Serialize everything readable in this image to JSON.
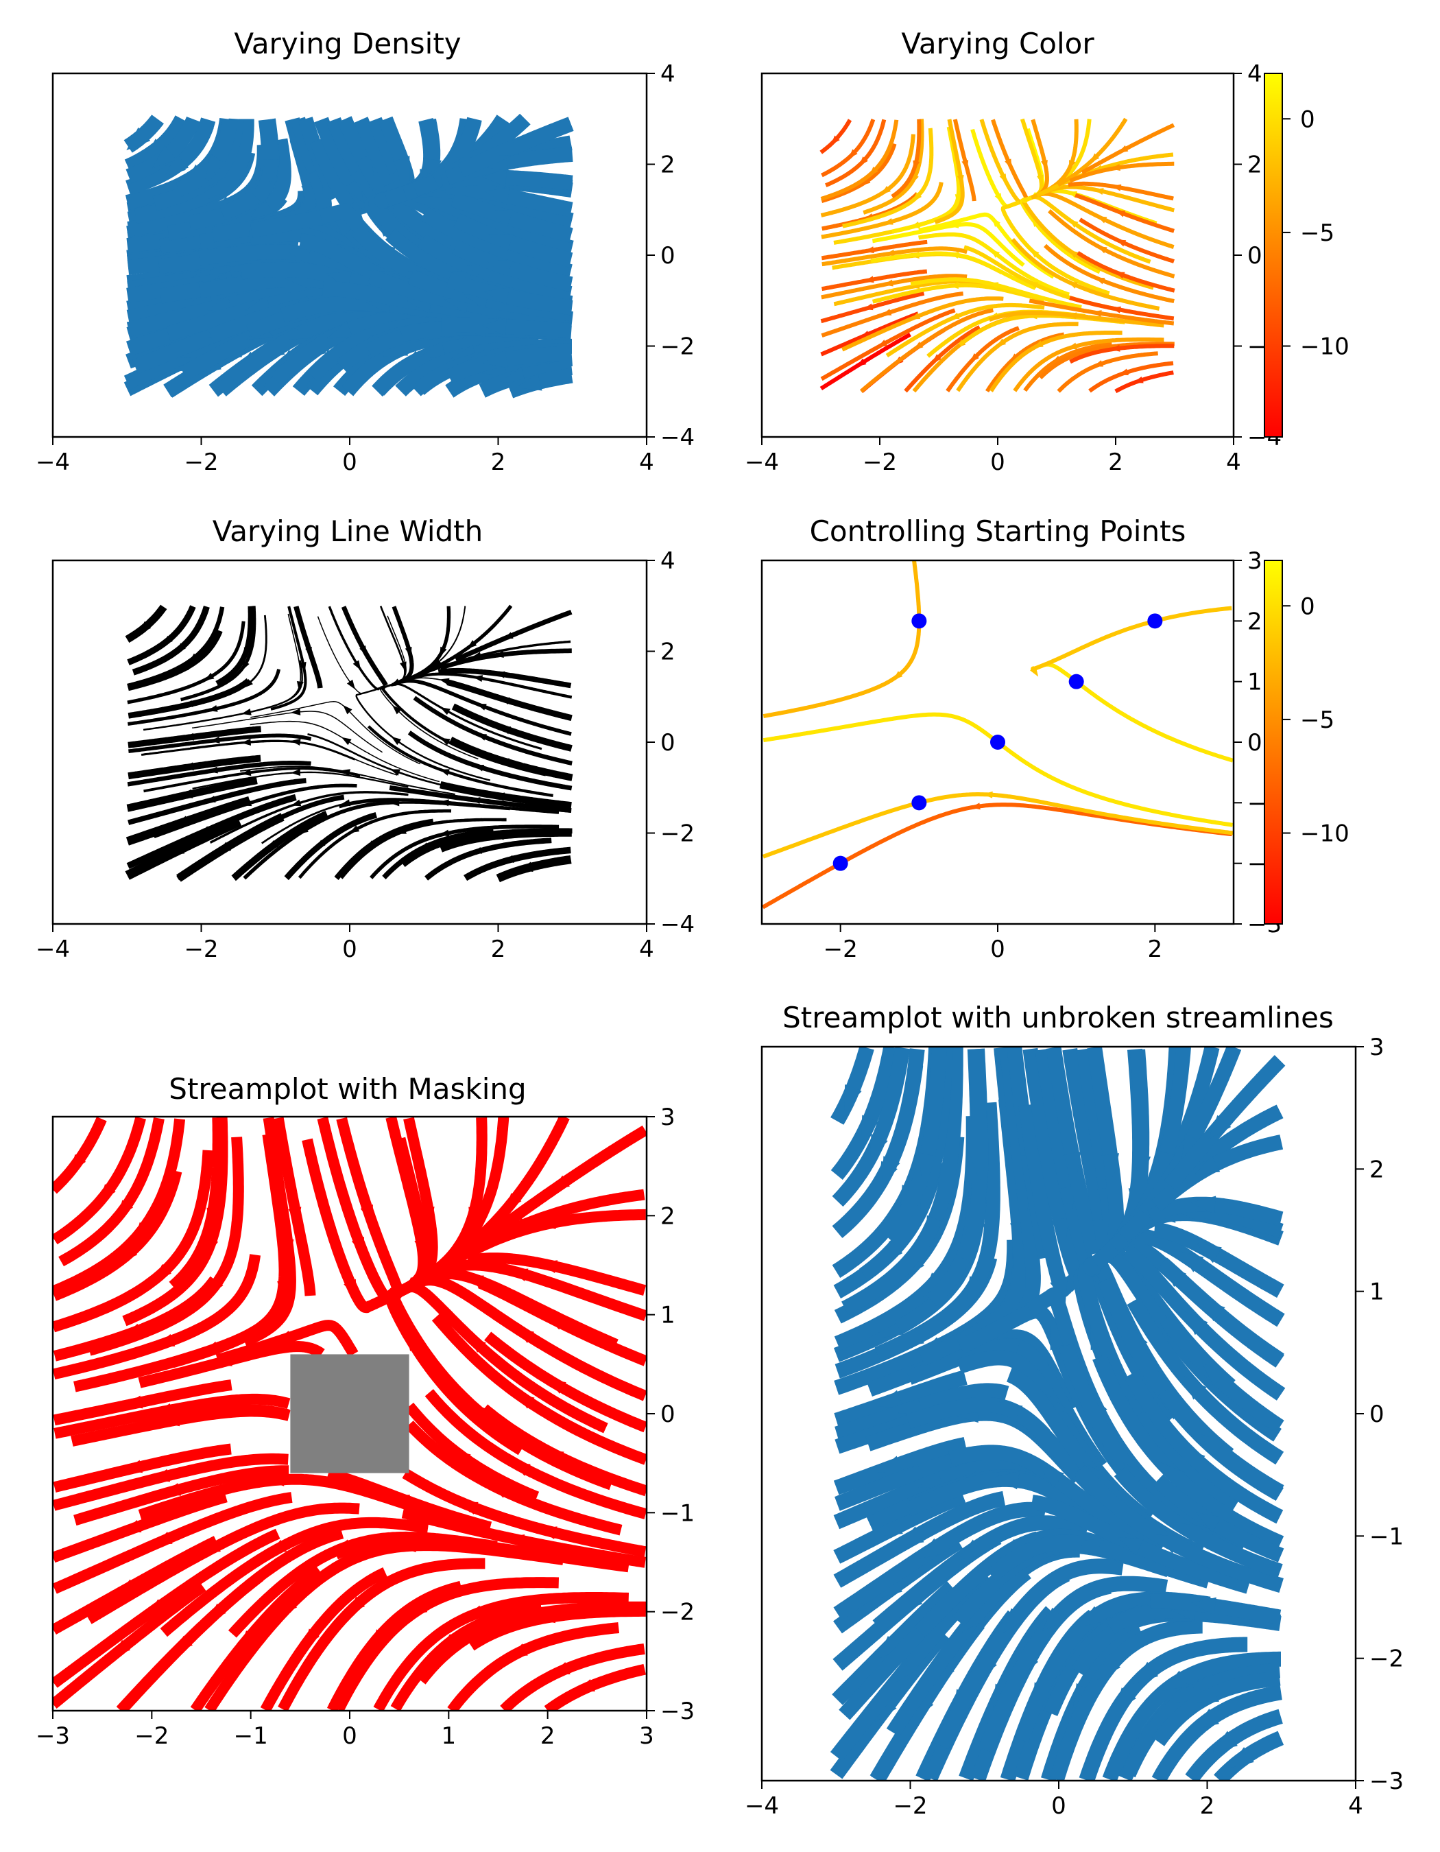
{
  "chart_data": [
    {
      "type": "streamplot",
      "title": "Varying Density",
      "xlim": [
        -4,
        4
      ],
      "ylim": [
        -4,
        4
      ],
      "xticks": [
        -4,
        -2,
        0,
        2,
        4
      ],
      "yticks": [
        -4,
        -2,
        0,
        2,
        4
      ],
      "x_tick_labels": [
        "−4",
        "−2",
        "0",
        "2",
        "4"
      ],
      "y_tick_labels": [
        "−4",
        "−2",
        "0",
        "2",
        "4"
      ],
      "y_axis_side": "right",
      "color": "#1f77b4",
      "field_domain": {
        "x": [
          -3,
          3
        ],
        "y": [
          -3,
          3
        ]
      }
    },
    {
      "type": "streamplot",
      "title": "Varying Color",
      "xlim": [
        -4,
        4
      ],
      "ylim": [
        -4,
        4
      ],
      "xticks": [
        -4,
        -2,
        0,
        2,
        4
      ],
      "yticks": [
        -4,
        -2,
        0,
        2,
        4
      ],
      "x_tick_labels": [
        "−4",
        "−2",
        "0",
        "2",
        "4"
      ],
      "y_tick_labels": [
        "−4",
        "−2",
        "0",
        "2",
        "4"
      ],
      "y_axis_side": "right",
      "colormap": "autumn",
      "colorbar": {
        "range": [
          -14,
          2
        ],
        "ticks": [
          0,
          -5,
          -10
        ],
        "tick_labels": [
          "0",
          "−5",
          "−10"
        ]
      },
      "field_domain": {
        "x": [
          -3,
          3
        ],
        "y": [
          -3,
          3
        ]
      }
    },
    {
      "type": "streamplot",
      "title": "Varying Line Width",
      "xlim": [
        -4,
        4
      ],
      "ylim": [
        -4,
        4
      ],
      "xticks": [
        -4,
        -2,
        0,
        2,
        4
      ],
      "yticks": [
        -4,
        -2,
        0,
        2,
        4
      ],
      "x_tick_labels": [
        "−4",
        "−2",
        "0",
        "2",
        "4"
      ],
      "y_tick_labels": [
        "−4",
        "−2",
        "0",
        "2",
        "4"
      ],
      "y_axis_side": "right",
      "color": "#000000",
      "field_domain": {
        "x": [
          -3,
          3
        ],
        "y": [
          -3,
          3
        ]
      }
    },
    {
      "type": "streamplot",
      "title": "Controlling Starting Points",
      "xlim": [
        -3,
        3
      ],
      "ylim": [
        -3,
        3
      ],
      "xticks": [
        -2,
        0,
        2
      ],
      "yticks": [
        -3,
        -2,
        -1,
        0,
        1,
        2,
        3
      ],
      "x_tick_labels": [
        "−2",
        "0",
        "2"
      ],
      "y_tick_labels": [
        "−3",
        "−2",
        "−1",
        "0",
        "1",
        "2",
        "3"
      ],
      "y_axis_side": "right",
      "colormap": "autumn",
      "colorbar": {
        "range": [
          -14,
          2
        ],
        "ticks": [
          0,
          -5,
          -10
        ],
        "tick_labels": [
          "0",
          "−5",
          "−10"
        ]
      },
      "start_points": [
        [
          -2,
          -2
        ],
        [
          -1,
          -1
        ],
        [
          0,
          0
        ],
        [
          1,
          1
        ],
        [
          2,
          2
        ],
        [
          -1,
          2
        ]
      ],
      "start_marker_color": "#0000ff"
    },
    {
      "type": "streamplot",
      "title": "Streamplot with Masking",
      "xlim": [
        -3,
        3
      ],
      "ylim": [
        -3,
        3
      ],
      "xticks": [
        -3,
        -2,
        -1,
        0,
        1,
        2,
        3
      ],
      "yticks": [
        -3,
        -2,
        -1,
        0,
        1,
        2,
        3
      ],
      "x_tick_labels": [
        "−3",
        "−2",
        "−1",
        "0",
        "1",
        "2",
        "3"
      ],
      "y_tick_labels": [
        "−3",
        "−2",
        "−1",
        "0",
        "1",
        "2",
        "3"
      ],
      "y_axis_side": "right",
      "color": "#ff0000",
      "mask_region": {
        "x": [
          -0.6,
          0.6
        ],
        "y": [
          -0.6,
          0.6
        ],
        "color": "#808080"
      },
      "field_domain": {
        "x": [
          -3,
          3
        ],
        "y": [
          -3,
          3
        ]
      }
    },
    {
      "type": "streamplot",
      "title": "Streamplot with unbroken streamlines",
      "xlim": [
        -4,
        4
      ],
      "ylim": [
        -3,
        3
      ],
      "xticks": [
        -4,
        -2,
        0,
        2,
        4
      ],
      "yticks": [
        -3,
        -2,
        -1,
        0,
        1,
        2,
        3
      ],
      "x_tick_labels": [
        "−4",
        "−2",
        "0",
        "2",
        "4"
      ],
      "y_tick_labels": [
        "−3",
        "−2",
        "−1",
        "0",
        "1",
        "2",
        "3"
      ],
      "y_axis_side": "right",
      "color": "#1f77b4",
      "field_domain": {
        "x": [
          -3,
          3
        ],
        "y": [
          -3,
          3
        ]
      }
    }
  ]
}
